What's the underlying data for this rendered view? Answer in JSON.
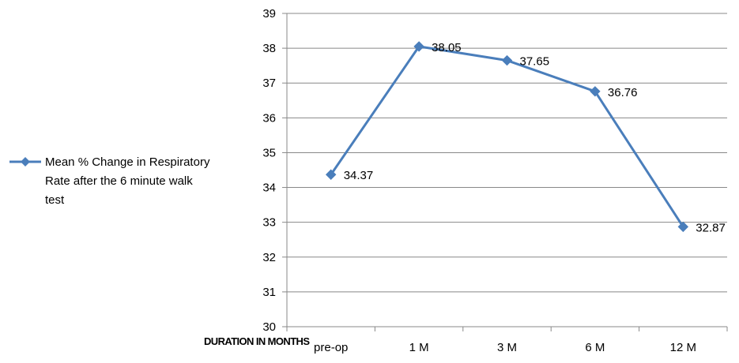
{
  "chart_data": {
    "type": "line",
    "categories": [
      "pre-op",
      "1 M",
      "3 M",
      "6 M",
      "12 M"
    ],
    "series": [
      {
        "name": "Mean % Change in Respiratory Rate after the 6 minute walk test",
        "values": [
          34.37,
          38.05,
          37.65,
          36.76,
          32.87
        ],
        "data_labels": [
          "34.37",
          "38.05",
          "37.65",
          "36.76",
          "32.87"
        ]
      }
    ],
    "title": "",
    "xlabel": "DURATION IN MONTHS",
    "ylabel": "",
    "ylim": [
      30,
      39
    ],
    "yticks": [
      "30",
      "31",
      "32",
      "33",
      "34",
      "35",
      "36",
      "37",
      "38",
      "39"
    ],
    "grid": "horizontal",
    "legend_position": "left",
    "legend_lines": [
      "Mean % Change in Respiratory",
      "Rate after the 6 minute walk",
      "test"
    ],
    "colors": {
      "series": "#4a7ebb",
      "grid": "#888888",
      "axis": "#888888"
    }
  }
}
